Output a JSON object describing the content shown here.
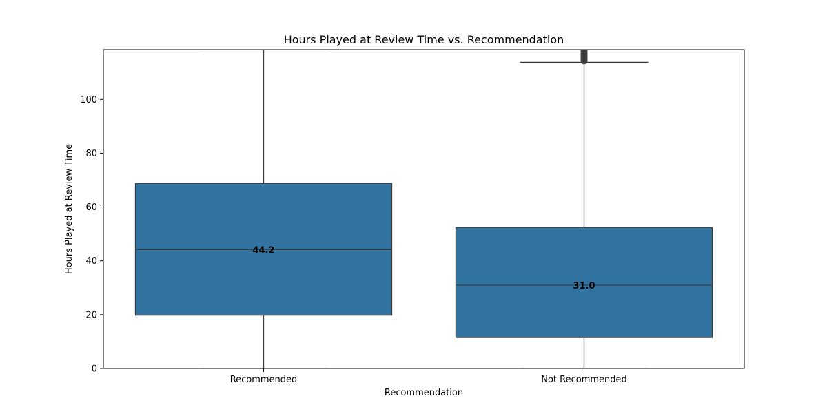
{
  "chart_data": {
    "type": "box",
    "title": "Hours Played at Review Time vs. Recommendation",
    "xlabel": "Recommendation",
    "ylabel": "Hours Played at Review Time",
    "ylim": [
      0,
      118.5
    ],
    "yticks": [
      0,
      20,
      40,
      60,
      80,
      100
    ],
    "categories": [
      "Recommended",
      "Not Recommended"
    ],
    "boxes": [
      {
        "category": "Recommended",
        "whisker_low": 0,
        "q1": 19.8,
        "median": 44.2,
        "q3": 68.8,
        "whisker_high": 118.5,
        "median_label": "44.2",
        "outliers": []
      },
      {
        "category": "Not Recommended",
        "whisker_low": 0,
        "q1": 11.5,
        "median": 31.0,
        "q3": 52.4,
        "whisker_high": 113.8,
        "median_label": "31.0",
        "outliers": [
          114.3,
          114.8,
          115.3,
          115.8,
          116.3,
          116.8,
          117.3,
          117.8,
          118.3
        ]
      }
    ],
    "box_color": "#3274a1",
    "line_color": "#3d3d3d",
    "grid": false,
    "legend": "none"
  }
}
